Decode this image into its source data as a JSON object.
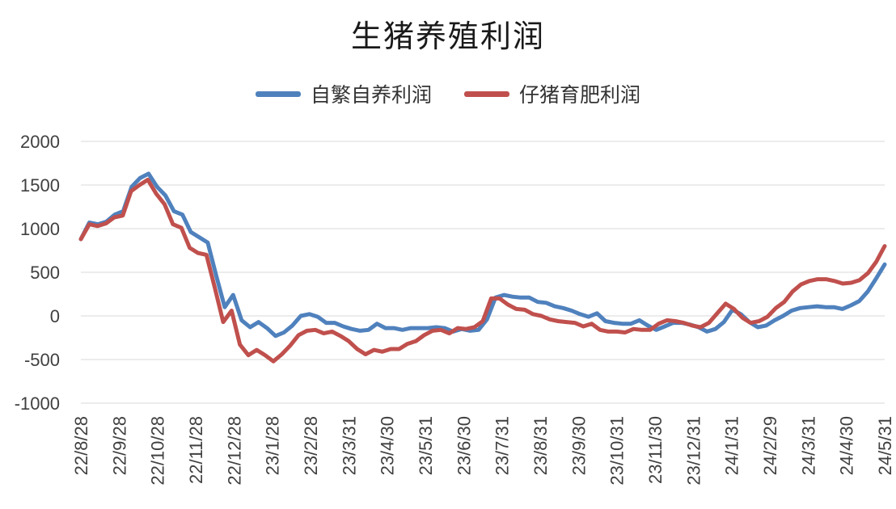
{
  "chart_data": {
    "type": "line",
    "title": "生猪养殖利润",
    "xlabel": "",
    "ylabel": "",
    "ylim": [
      -1000,
      2000
    ],
    "yticks": [
      2000,
      1500,
      1000,
      500,
      0,
      -500,
      -1000
    ],
    "xticks": [
      "22/8/28",
      "22/9/28",
      "22/10/28",
      "22/11/28",
      "22/12/28",
      "23/1/28",
      "23/2/28",
      "23/3/31",
      "23/4/30",
      "23/5/31",
      "23/6/30",
      "23/7/31",
      "23/8/31",
      "23/9/30",
      "23/10/31",
      "23/11/30",
      "23/12/31",
      "24/1/31",
      "24/2/29",
      "24/3/31",
      "24/4/30",
      "24/5/31"
    ],
    "grid": true,
    "legend_position": "top",
    "series": [
      {
        "name": "自繁自养利润",
        "color": "#4f81bd",
        "values": [
          880,
          1070,
          1050,
          1080,
          1160,
          1200,
          1480,
          1580,
          1630,
          1480,
          1380,
          1200,
          1160,
          960,
          900,
          840,
          460,
          100,
          240,
          -50,
          -130,
          -70,
          -140,
          -230,
          -190,
          -110,
          0,
          20,
          -10,
          -80,
          -80,
          -120,
          -150,
          -170,
          -160,
          -90,
          -140,
          -140,
          -160,
          -140,
          -140,
          -140,
          -130,
          -140,
          -180,
          -150,
          -170,
          -160,
          -40,
          210,
          240,
          220,
          210,
          210,
          160,
          150,
          110,
          90,
          60,
          20,
          -10,
          30,
          -60,
          -80,
          -90,
          -90,
          -50,
          -110,
          -160,
          -120,
          -80,
          -80,
          -100,
          -130,
          -180,
          -150,
          -70,
          70,
          20,
          -70,
          -130,
          -110,
          -50,
          0,
          60,
          90,
          100,
          110,
          100,
          100,
          80,
          120,
          170,
          280,
          430,
          590
        ]
      },
      {
        "name": "仔猪育肥利润",
        "color": "#c0504d",
        "values": [
          880,
          1050,
          1030,
          1060,
          1130,
          1150,
          1430,
          1500,
          1560,
          1400,
          1280,
          1050,
          1010,
          780,
          720,
          700,
          320,
          -70,
          60,
          -330,
          -450,
          -390,
          -450,
          -520,
          -440,
          -340,
          -220,
          -170,
          -160,
          -200,
          -180,
          -230,
          -290,
          -380,
          -440,
          -390,
          -410,
          -380,
          -380,
          -320,
          -290,
          -220,
          -170,
          -160,
          -200,
          -140,
          -150,
          -130,
          -60,
          200,
          200,
          130,
          80,
          70,
          20,
          0,
          -40,
          -60,
          -70,
          -80,
          -120,
          -90,
          -160,
          -180,
          -180,
          -190,
          -150,
          -160,
          -160,
          -90,
          -50,
          -60,
          -80,
          -110,
          -130,
          -80,
          30,
          140,
          80,
          -20,
          -80,
          -60,
          -10,
          90,
          160,
          280,
          360,
          400,
          420,
          420,
          400,
          370,
          380,
          410,
          490,
          620,
          800
        ]
      }
    ]
  }
}
